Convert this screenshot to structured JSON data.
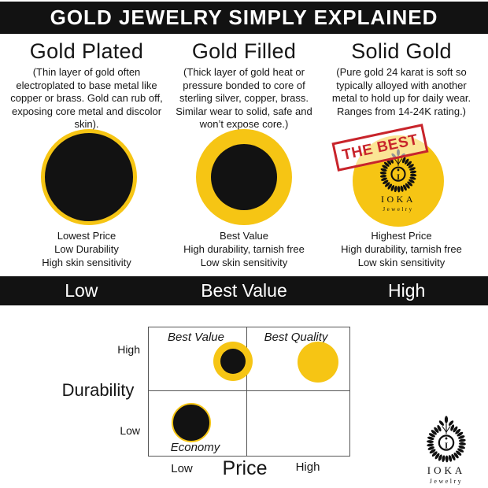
{
  "header": {
    "title": "GOLD JEWELRY SIMPLY EXPLAINED"
  },
  "columns": [
    {
      "title": "Gold Plated",
      "description": "(Thin layer of gold often electroplated to base metal like copper or brass. Gold can rub off, exposing core metal and discolor skin).",
      "captions": [
        "Lowest Price",
        "Low Durability",
        "High skin sensitivity"
      ]
    },
    {
      "title": "Gold Filled",
      "description": "(Thick layer of gold heat or pressure bonded to core of sterling silver, copper, brass. Similar wear to solid, safe and won’t expose core.)",
      "captions": [
        "Best Value",
        "High durability, tarnish free",
        "Low skin sensitivity"
      ]
    },
    {
      "title": "Solid Gold",
      "description": "(Pure gold 24 karat is soft so typically alloyed with another metal to hold up for daily wear. Ranges from 14-24K rating.)",
      "captions": [
        "Highest Price",
        "High durability, tarnish free",
        "Low skin sensitivity"
      ],
      "stamp": "THE BEST"
    }
  ],
  "scale_bar": {
    "low": "Low",
    "center": "Best Value",
    "high": "High"
  },
  "chart_data": {
    "type": "scatter",
    "title": "",
    "xlabel": "Price",
    "ylabel": "Durability",
    "x_ticks": [
      "Low",
      "High"
    ],
    "y_ticks": [
      "High",
      "Low"
    ],
    "grid": "2x2 quadrants",
    "legend_position": "none",
    "quadrants": {
      "top_left": "Best Value",
      "top_right": "Best Quality",
      "bottom_left": "Economy",
      "bottom_right": ""
    },
    "points": [
      {
        "name": "gold-filled",
        "x": "Low",
        "y": "High",
        "quadrant": "top_left",
        "appearance": "black core with thick gold ring"
      },
      {
        "name": "solid-gold",
        "x": "High",
        "y": "High",
        "quadrant": "top_right",
        "appearance": "solid gold circle"
      },
      {
        "name": "gold-plated",
        "x": "Low",
        "y": "Low",
        "quadrant": "bottom_left",
        "appearance": "black circle with thin gold ring"
      }
    ]
  },
  "logo": {
    "name": "IOKA",
    "tagline": "Jewelry"
  },
  "colors": {
    "gold": "#F6C514",
    "red": "#C8242B",
    "ink": "#121212"
  }
}
